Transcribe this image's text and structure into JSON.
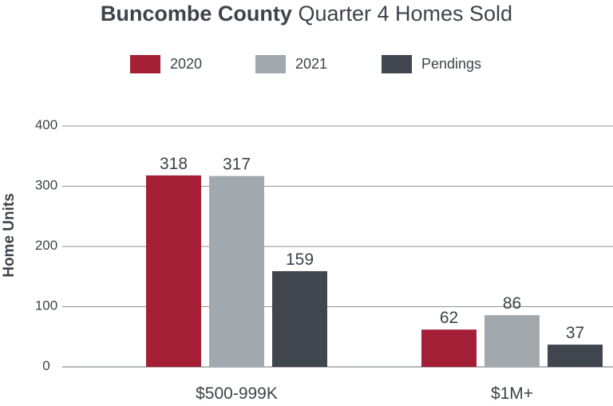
{
  "chart_data": {
    "type": "bar",
    "title_bold": "Buncombe County",
    "title_rest": "Quarter 4 Homes Sold",
    "ylabel": "Home Units",
    "xlabel": "",
    "ylim": [
      0,
      400
    ],
    "yticks": [
      0,
      100,
      200,
      300,
      400
    ],
    "legend_position": "top",
    "grid": true,
    "categories": [
      "$500-999K",
      "$1M+"
    ],
    "series": [
      {
        "name": "2020",
        "color": "#a21f35",
        "values": [
          318,
          62
        ]
      },
      {
        "name": "2021",
        "color": "#a2a9ae",
        "values": [
          317,
          86
        ]
      },
      {
        "name": "Pendings",
        "color": "#3f464d",
        "values": [
          159,
          37
        ]
      }
    ]
  }
}
